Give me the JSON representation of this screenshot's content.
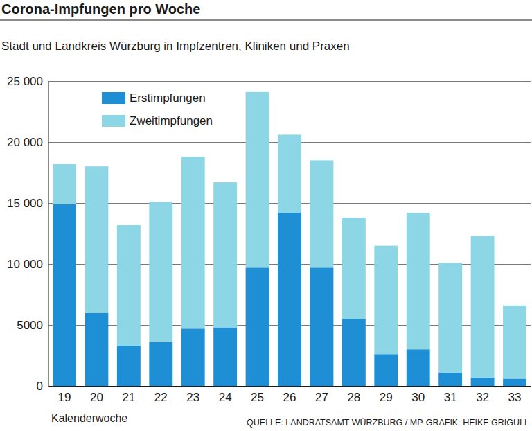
{
  "chart_data": {
    "type": "bar",
    "title": "Corona-Impfungen pro Woche",
    "subtitle": "Stadt und Landkreis Würzburg in Impfzentren, Kliniken und Praxen",
    "x_label": "Kalenderwoche",
    "source": "QUELLE: LANDRATSAMT WÜRZBURG / MP-GRAFIK: HEIKE GRIGULL",
    "categories": [
      "19",
      "20",
      "21",
      "22",
      "23",
      "24",
      "25",
      "26",
      "27",
      "28",
      "29",
      "30",
      "31",
      "32",
      "33"
    ],
    "series": [
      {
        "name": "Erstimpfungen",
        "color": "#1f8fd5",
        "values": [
          14900,
          6000,
          3300,
          3600,
          4700,
          4800,
          9700,
          14200,
          9700,
          5500,
          2600,
          3000,
          1100,
          700,
          600
        ]
      },
      {
        "name": "Zweitimpfungen",
        "color": "#8dd6e6",
        "values": [
          3300,
          12000,
          9900,
          11500,
          14100,
          11900,
          14400,
          6400,
          8800,
          8300,
          8900,
          11200,
          9000,
          11600,
          6000
        ]
      }
    ],
    "stacked": true,
    "ylim": [
      0,
      25000
    ],
    "yticks": [
      0,
      5000,
      {
        "value": 10000,
        "label": "10 000"
      },
      {
        "value": 15000,
        "label": "15 000"
      },
      {
        "value": 20000,
        "label": "20 000"
      },
      {
        "value": 25000,
        "label": "25 000"
      }
    ],
    "grid": true,
    "legend": "top-left"
  }
}
